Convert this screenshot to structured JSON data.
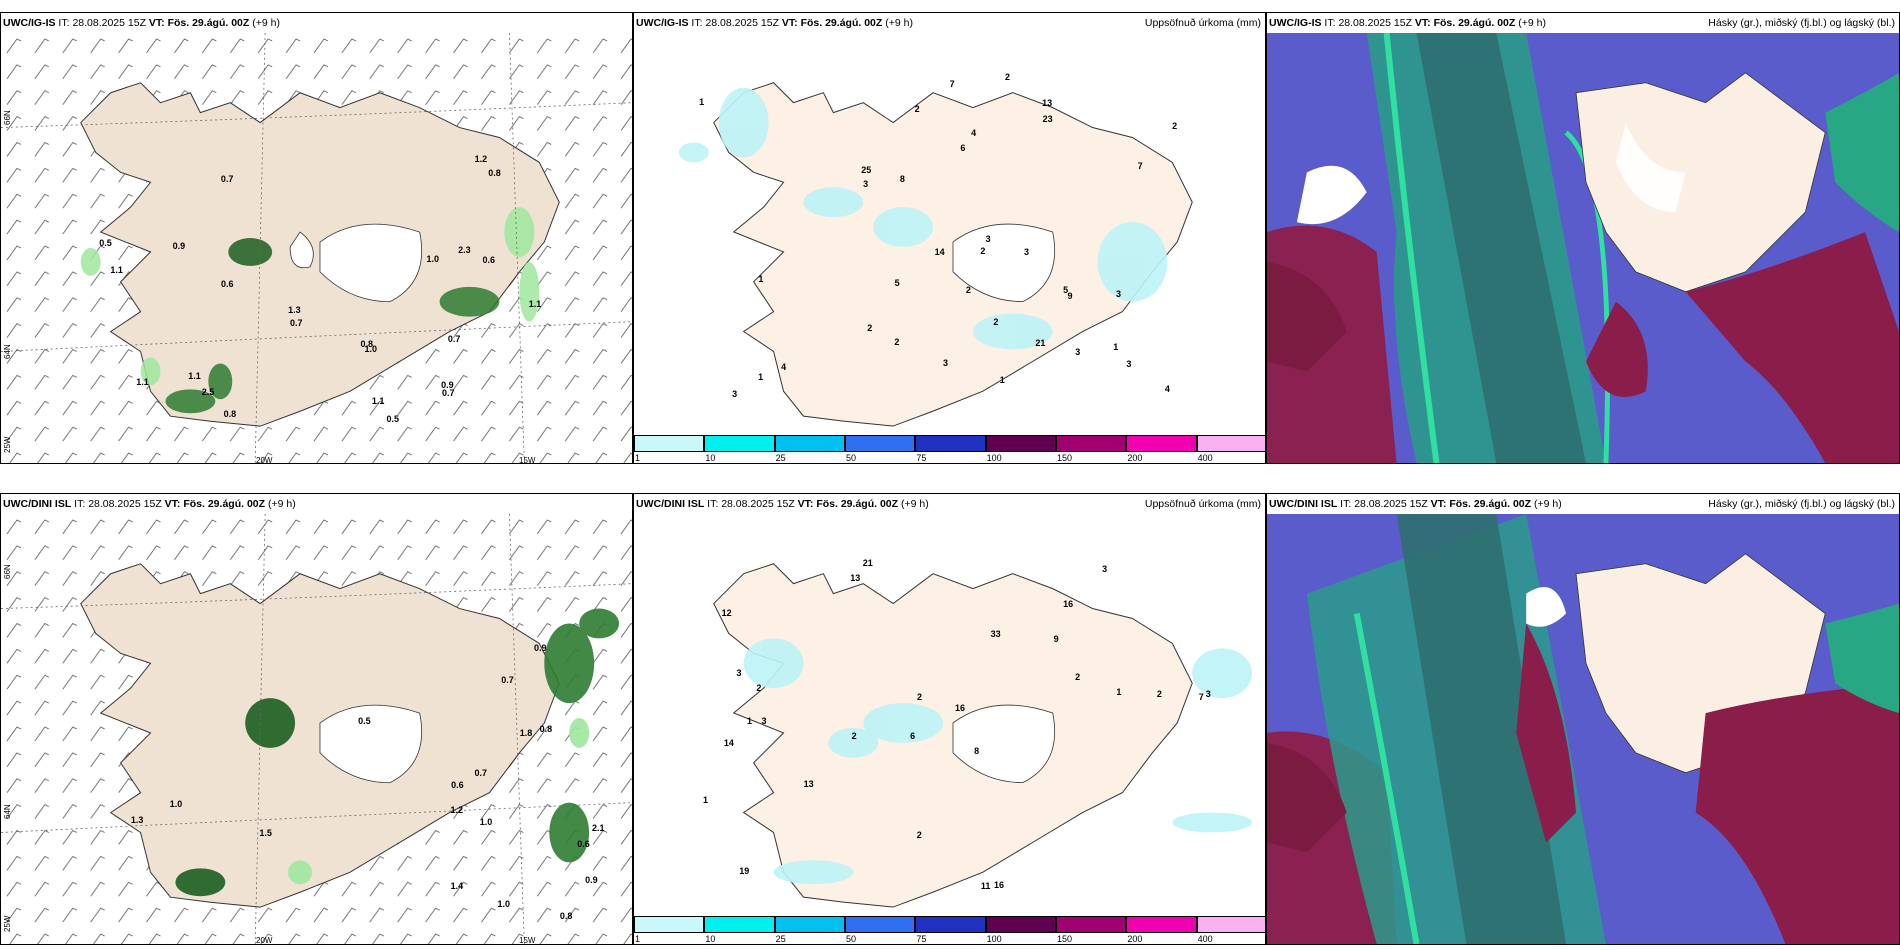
{
  "panels": [
    {
      "id": "p1",
      "model": "UWC/IG-IS",
      "it_label": "IT:",
      "it": "28.08.2025 15Z",
      "vt_label": "VT:",
      "vt": "Fös. 29.ágú. 00Z",
      "lead": "(+9 h)",
      "right_title": ""
    },
    {
      "id": "p2",
      "model": "UWC/IG-IS",
      "it_label": "IT:",
      "it": "28.08.2025 15Z",
      "vt_label": "VT:",
      "vt": "Fös. 29.ágú. 00Z",
      "lead": "(+9 h)",
      "right_title": "Uppsöfnuð úrkoma (mm)"
    },
    {
      "id": "p3",
      "model": "UWC/IG-IS",
      "it_label": "IT:",
      "it": "28.08.2025 15Z",
      "vt_label": "VT:",
      "vt": "Fös. 29.ágú. 00Z",
      "lead": "(+9 h)",
      "right_title": "Hásky (gr.), miðský (fj.bl.) og lágský (bl.)"
    },
    {
      "id": "p4",
      "model": "UWC/DINI ISL",
      "it_label": "IT:",
      "it": "28.08.2025 15Z",
      "vt_label": "VT:",
      "vt": "Fös. 29.ágú. 00Z",
      "lead": "(+9 h)",
      "right_title": ""
    },
    {
      "id": "p5",
      "model": "UWC/DINI ISL",
      "it_label": "IT:",
      "it": "28.08.2025 15Z",
      "vt_label": "VT:",
      "vt": "Fös. 29.ágú. 00Z",
      "lead": "(+9 h)",
      "right_title": "Uppsöfnuð úrkoma (mm)"
    },
    {
      "id": "p6",
      "model": "UWC/DINI ISL",
      "it_label": "IT:",
      "it": "28.08.2025 15Z",
      "vt_label": "VT:",
      "vt": "Fös. 29.ágú. 00Z",
      "lead": "(+9 h)",
      "right_title": "Hásky (gr.), miðský (fj.bl.) og lágský (bl.)"
    }
  ],
  "coords": {
    "lat66": "66N",
    "lat64": "64N",
    "lon25": "25W",
    "lon20": "20W",
    "lon15": "15W"
  },
  "colorbar": {
    "labels": [
      "1",
      "10",
      "25",
      "50",
      "75",
      "100",
      "150",
      "200",
      "400"
    ],
    "colors": [
      "#c8f8fa",
      "#00f0f0",
      "#00c0f0",
      "#3070f0",
      "#2030c0",
      "#600050",
      "#a00070",
      "#f000b0",
      "#f8b0f0"
    ]
  },
  "wind_values_top": [
    "0.5",
    "0.7",
    "1.1",
    "0.9",
    "2.3",
    "1.1",
    "1.1",
    "0.6",
    "0.7",
    "2.5",
    "1.1",
    "0.5",
    "1.3",
    "0.8",
    "1.0",
    "1.2",
    "1.1",
    "0.8",
    "0.7",
    "0.6",
    "0.9",
    "1.0",
    "0.8",
    "0.7"
  ],
  "wind_values_bottom": [
    "1.2",
    "2.1",
    "1.8",
    "0.6",
    "1.4",
    "0.7",
    "0.8",
    "0.5",
    "0.9",
    "1.0",
    "0.7",
    "0.6",
    "1.3",
    "1.0",
    "1.5",
    "0.8",
    "0.9",
    "1.0"
  ],
  "precip_values_top": [
    "1",
    "3",
    "3",
    "2",
    "2",
    "2",
    "1",
    "13",
    "3",
    "2",
    "4",
    "3",
    "2",
    "7",
    "21",
    "25",
    "5",
    "1",
    "14",
    "2",
    "1",
    "4",
    "3",
    "3",
    "9",
    "23",
    "8",
    "6",
    "7",
    "2",
    "3",
    "5",
    "4",
    "3",
    "2",
    "1"
  ],
  "precip_values_bottom": [
    "21",
    "16",
    "7",
    "6",
    "8",
    "3",
    "12",
    "9",
    "14",
    "33",
    "16",
    "19",
    "13",
    "2",
    "11",
    "16",
    "2",
    "3",
    "2",
    "13",
    "2",
    "1",
    "3",
    "2",
    "1",
    "3",
    "2",
    "1"
  ]
}
